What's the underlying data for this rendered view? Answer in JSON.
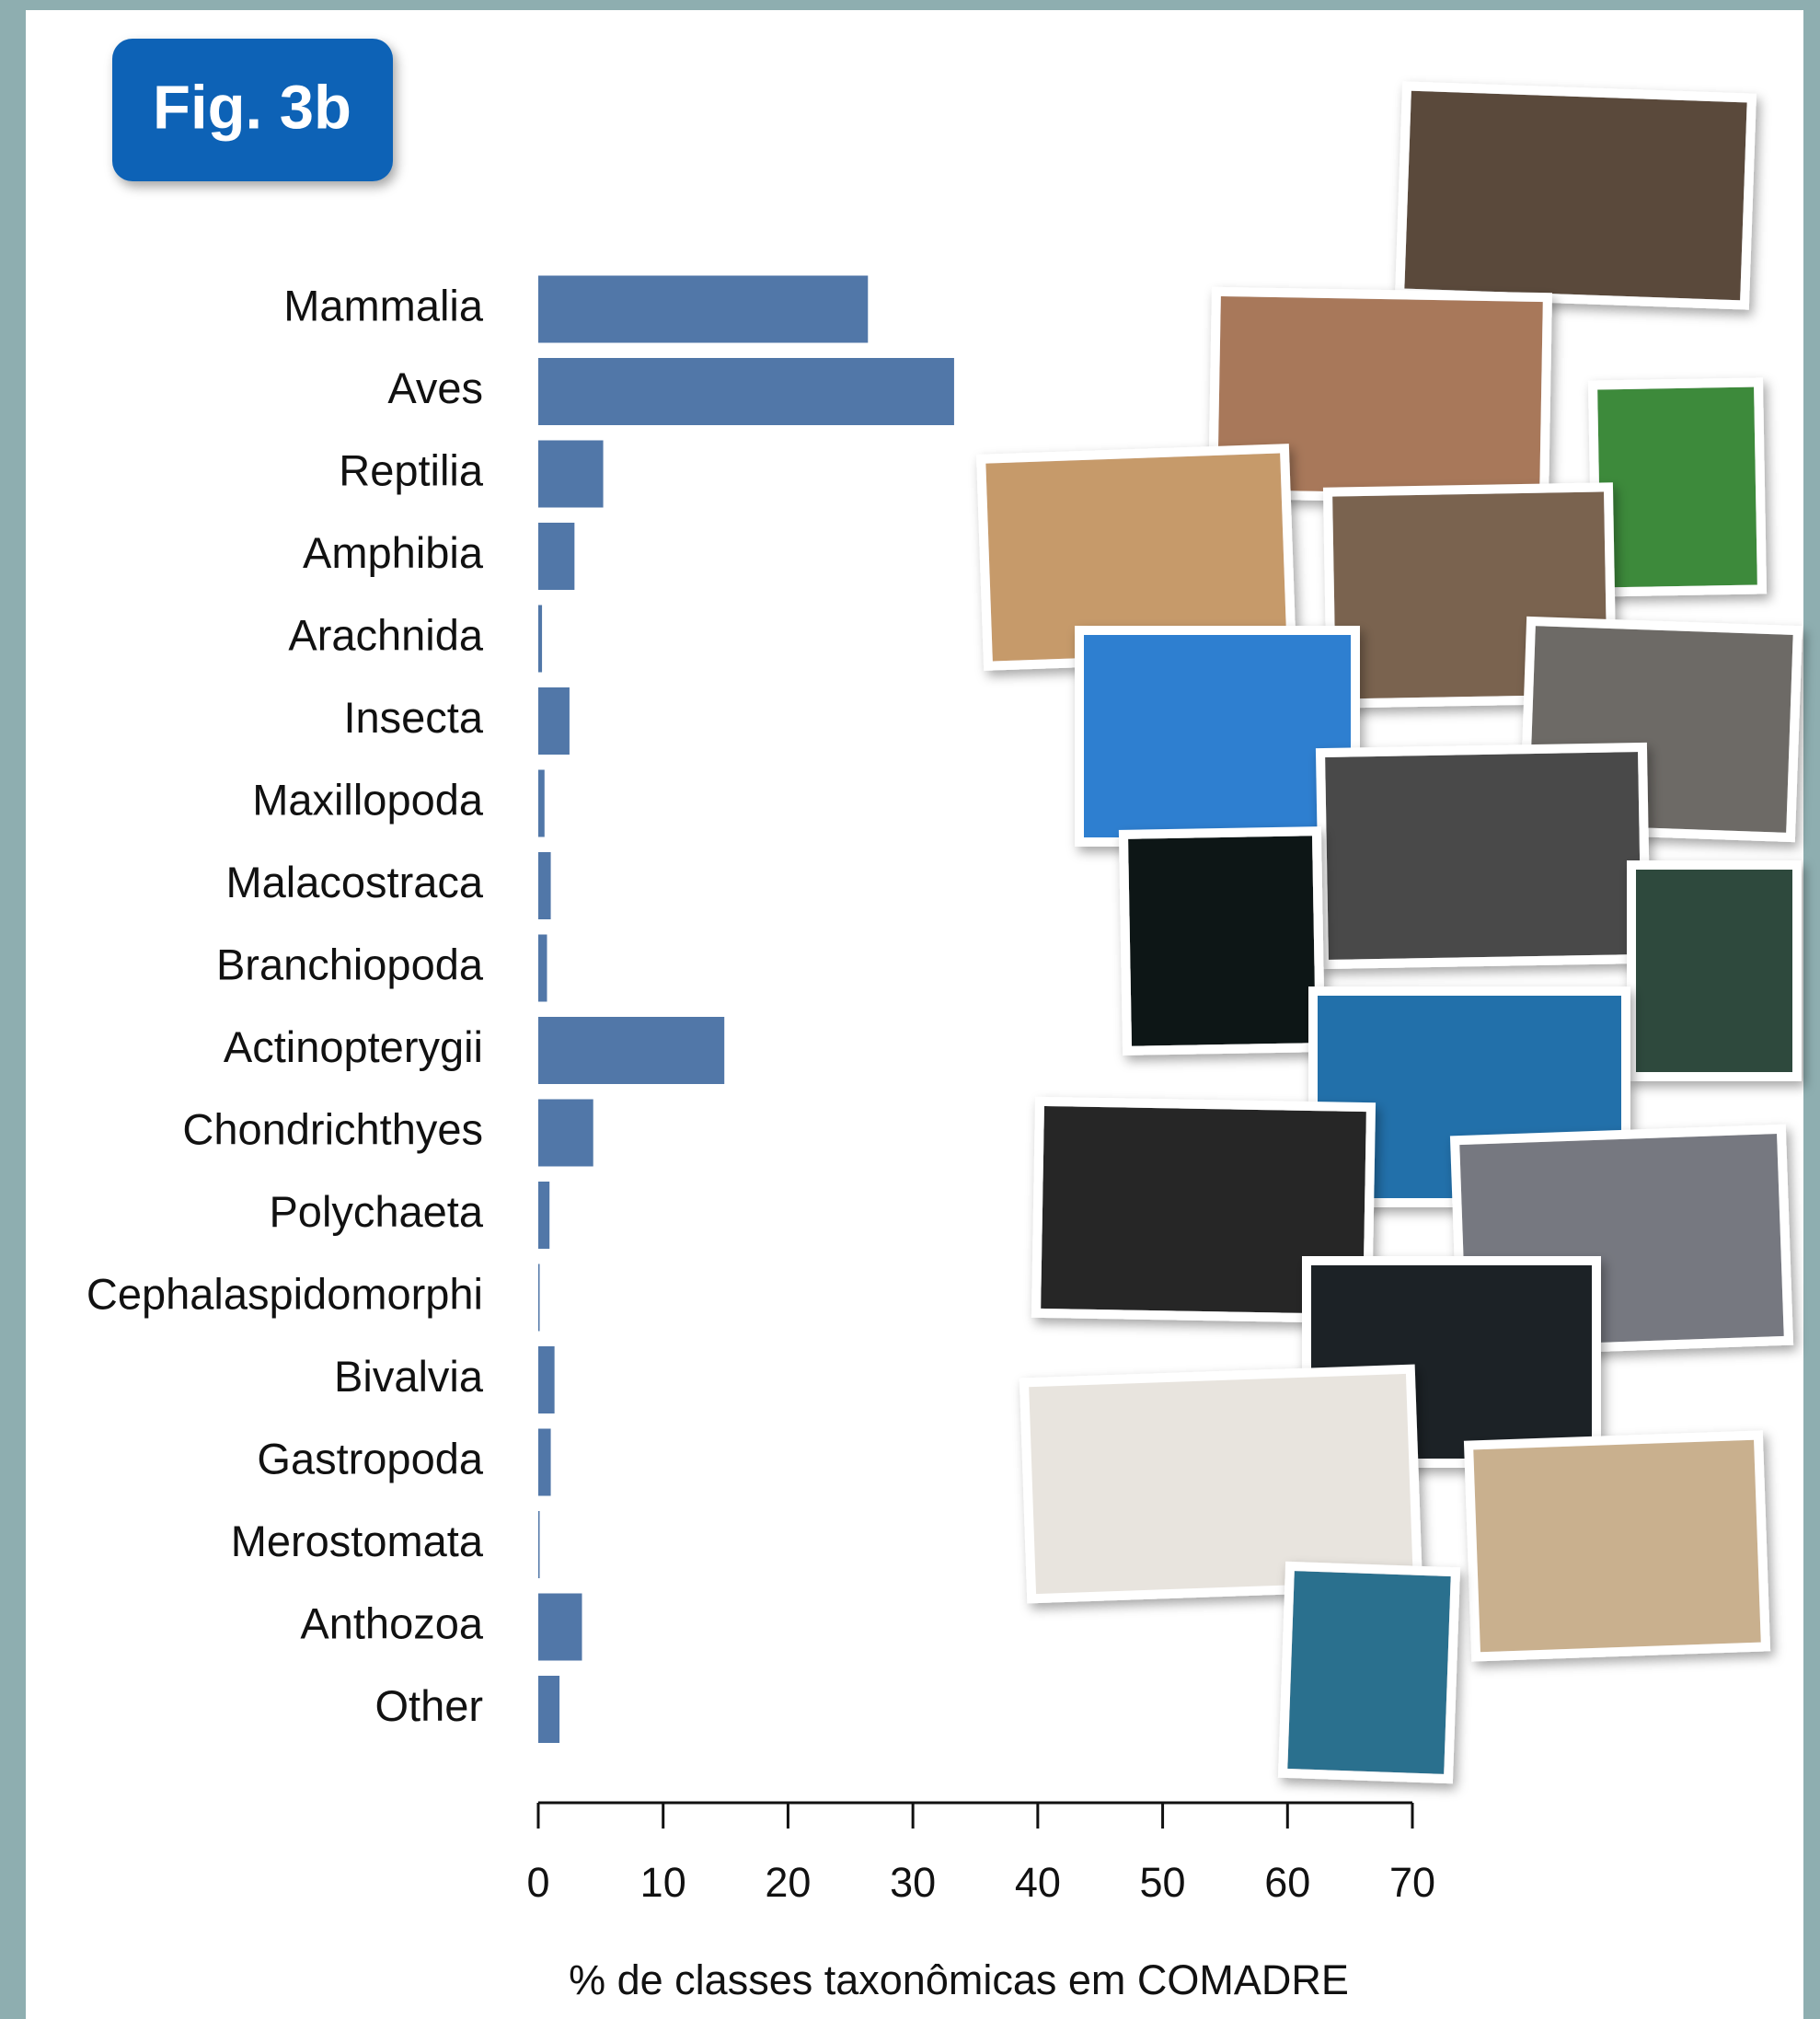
{
  "chart_data": {
    "type": "barh",
    "figure_label": "Fig. 3b",
    "categories": [
      "Mammalia",
      "Aves",
      "Reptilia",
      "Amphibia",
      "Arachnida",
      "Insecta",
      "Maxillopoda",
      "Malacostraca",
      "Branchiopoda",
      "Actinopterygii",
      "Chondrichthyes",
      "Polychaeta",
      "Cephalaspidomorphi",
      "Bivalvia",
      "Gastropoda",
      "Merostomata",
      "Anthozoa",
      "Other"
    ],
    "values": [
      26.4,
      33.3,
      5.2,
      2.9,
      0.3,
      2.5,
      0.5,
      1.0,
      0.7,
      14.9,
      4.4,
      0.9,
      0.1,
      1.3,
      1.0,
      0.1,
      3.5,
      1.7
    ],
    "color": "#5177a8",
    "xlim": [
      0,
      70
    ],
    "xticks": [
      0,
      10,
      20,
      30,
      40,
      50,
      60,
      70
    ],
    "x_label": "% de classes taxonômicas em COMADRE"
  }
}
